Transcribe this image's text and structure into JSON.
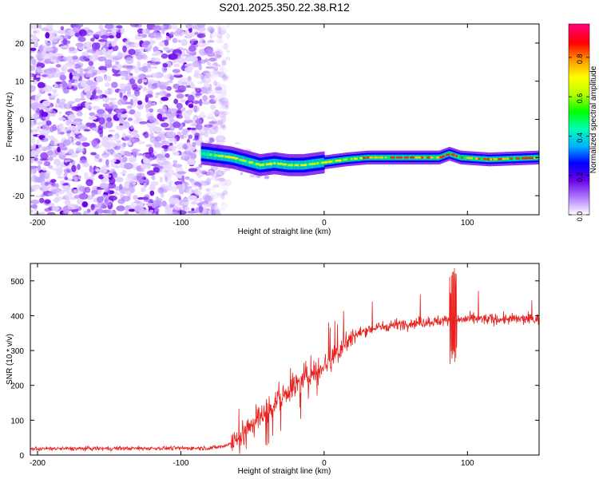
{
  "title": "S201.2025.350.22.38.R12",
  "chart_data": [
    {
      "type": "heatmap",
      "id": "spectrogram",
      "xlabel": "Height of straight line (km)",
      "ylabel": "Frequency (Hz)",
      "xlim": [
        -205,
        150
      ],
      "ylim": [
        -25,
        25
      ],
      "xticks": [
        -200,
        -100,
        0,
        100
      ],
      "yticks": [
        20,
        10,
        0,
        -10,
        -20
      ],
      "noise_region_x": [
        -205,
        -70
      ],
      "noise_cutoff_x": -75,
      "signal_center_hz": [
        [
          -85,
          -9
        ],
        [
          -75,
          -9.5
        ],
        [
          -65,
          -10
        ],
        [
          -55,
          -11
        ],
        [
          -45,
          -12
        ],
        [
          -35,
          -11.5
        ],
        [
          -25,
          -12
        ],
        [
          -15,
          -12
        ],
        [
          -5,
          -11.5
        ],
        [
          5,
          -11
        ],
        [
          15,
          -10.5
        ],
        [
          30,
          -10
        ],
        [
          60,
          -10
        ],
        [
          80,
          -10
        ],
        [
          87,
          -9
        ],
        [
          95,
          -10
        ],
        [
          115,
          -10.5
        ],
        [
          150,
          -10
        ]
      ],
      "colorbar": {
        "label": "Normalized spectral amplitude",
        "ticks": [
          0.0,
          0.2,
          0.4,
          0.6,
          0.8
        ],
        "range": [
          0,
          0.97
        ],
        "colors": [
          "#ffffff",
          "#b07cff",
          "#6a00e6",
          "#0000ff",
          "#00b4ff",
          "#00ffb4",
          "#00ff00",
          "#b4ff00",
          "#ffff00",
          "#ff9600",
          "#ff0000",
          "#ff0080"
        ]
      }
    },
    {
      "type": "line",
      "id": "snr",
      "xlabel": "Height of straight line (km)",
      "ylabel": "SNR (10 * v/v)",
      "xlim": [
        -205,
        150
      ],
      "ylim": [
        0,
        550
      ],
      "xticks": [
        -200,
        -100,
        0,
        100
      ],
      "yticks": [
        0,
        100,
        200,
        300,
        400,
        500
      ],
      "line_color": "#e8211e",
      "trend_x": [
        -205,
        -80,
        -70,
        -60,
        -50,
        -40,
        -30,
        -20,
        -10,
        0,
        10,
        20,
        30,
        50,
        80,
        100,
        150
      ],
      "trend_y": [
        18,
        20,
        25,
        45,
        90,
        130,
        165,
        200,
        230,
        260,
        300,
        340,
        360,
        375,
        385,
        390,
        390
      ],
      "spike": {
        "x": 90,
        "max": 537,
        "min": 255
      }
    }
  ]
}
